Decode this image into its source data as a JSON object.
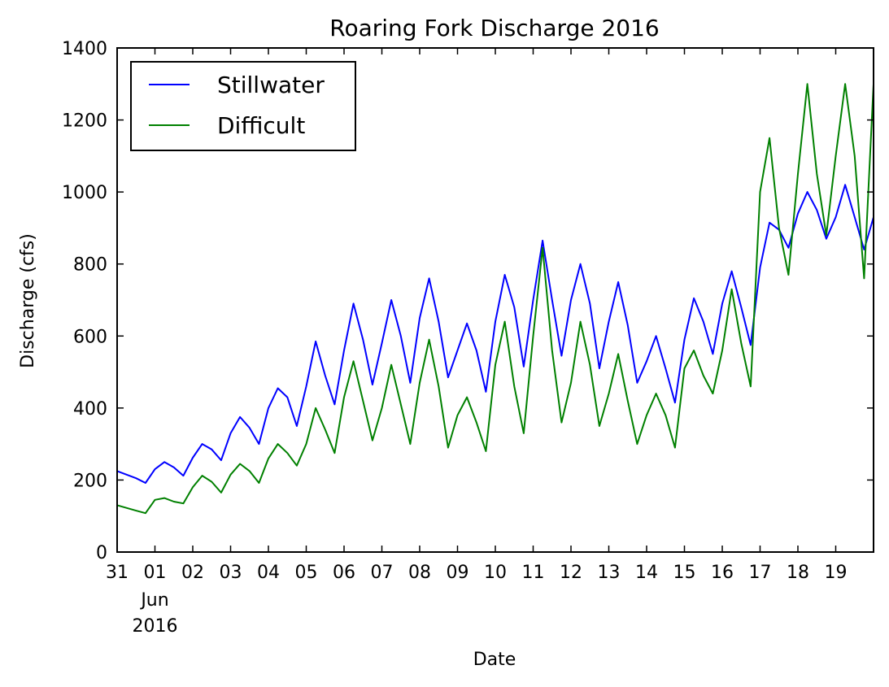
{
  "chart_data": {
    "type": "line",
    "title": "Roaring Fork Discharge 2016",
    "xlabel": "Date",
    "ylabel": "Discharge (cfs)",
    "xlim": [
      "2016-05-31",
      "2016-06-20"
    ],
    "ylim": [
      0,
      1400
    ],
    "yticks": [
      0,
      200,
      400,
      600,
      800,
      1000,
      1200,
      1400
    ],
    "xticks": [
      {
        "date": "2016-05-31",
        "label": "31"
      },
      {
        "date": "2016-06-01",
        "label": "01"
      },
      {
        "date": "2016-06-02",
        "label": "02"
      },
      {
        "date": "2016-06-03",
        "label": "03"
      },
      {
        "date": "2016-06-04",
        "label": "04"
      },
      {
        "date": "2016-06-05",
        "label": "05"
      },
      {
        "date": "2016-06-06",
        "label": "06"
      },
      {
        "date": "2016-06-07",
        "label": "07"
      },
      {
        "date": "2016-06-08",
        "label": "08"
      },
      {
        "date": "2016-06-09",
        "label": "09"
      },
      {
        "date": "2016-06-10",
        "label": "10"
      },
      {
        "date": "2016-06-11",
        "label": "11"
      },
      {
        "date": "2016-06-12",
        "label": "12"
      },
      {
        "date": "2016-06-13",
        "label": "13"
      },
      {
        "date": "2016-06-14",
        "label": "14"
      },
      {
        "date": "2016-06-15",
        "label": "15"
      },
      {
        "date": "2016-06-16",
        "label": "16"
      },
      {
        "date": "2016-06-17",
        "label": "17"
      },
      {
        "date": "2016-06-18",
        "label": "18"
      },
      {
        "date": "2016-06-19",
        "label": "19"
      }
    ],
    "xtick_sublabel": {
      "month": "Jun",
      "year": "2016"
    },
    "legend": "top-left",
    "grid": false,
    "series": [
      {
        "name": "Stillwater",
        "color": "#0000ff",
        "x": [
          "2016-05-31 00:00",
          "2016-05-31 12:00",
          "2016-05-31 18:00",
          "2016-06-01 00:00",
          "2016-06-01 06:00",
          "2016-06-01 12:00",
          "2016-06-01 18:00",
          "2016-06-02 00:00",
          "2016-06-02 06:00",
          "2016-06-02 12:00",
          "2016-06-02 18:00",
          "2016-06-03 00:00",
          "2016-06-03 06:00",
          "2016-06-03 12:00",
          "2016-06-03 18:00",
          "2016-06-04 00:00",
          "2016-06-04 06:00",
          "2016-06-04 12:00",
          "2016-06-04 18:00",
          "2016-06-05 00:00",
          "2016-06-05 06:00",
          "2016-06-05 12:00",
          "2016-06-05 18:00",
          "2016-06-06 00:00",
          "2016-06-06 06:00",
          "2016-06-06 12:00",
          "2016-06-06 18:00",
          "2016-06-07 00:00",
          "2016-06-07 06:00",
          "2016-06-07 12:00",
          "2016-06-07 18:00",
          "2016-06-08 00:00",
          "2016-06-08 06:00",
          "2016-06-08 12:00",
          "2016-06-08 18:00",
          "2016-06-09 00:00",
          "2016-06-09 06:00",
          "2016-06-09 12:00",
          "2016-06-09 18:00",
          "2016-06-10 00:00",
          "2016-06-10 06:00",
          "2016-06-10 12:00",
          "2016-06-10 18:00",
          "2016-06-11 00:00",
          "2016-06-11 06:00",
          "2016-06-11 12:00",
          "2016-06-11 18:00",
          "2016-06-12 00:00",
          "2016-06-12 06:00",
          "2016-06-12 12:00",
          "2016-06-12 18:00",
          "2016-06-13 00:00",
          "2016-06-13 06:00",
          "2016-06-13 12:00",
          "2016-06-13 18:00",
          "2016-06-14 00:00",
          "2016-06-14 06:00",
          "2016-06-14 12:00",
          "2016-06-14 18:00",
          "2016-06-15 00:00",
          "2016-06-15 06:00",
          "2016-06-15 12:00",
          "2016-06-15 18:00",
          "2016-06-16 00:00",
          "2016-06-16 06:00",
          "2016-06-16 12:00",
          "2016-06-16 18:00",
          "2016-06-17 00:00",
          "2016-06-17 06:00",
          "2016-06-17 12:00",
          "2016-06-17 18:00",
          "2016-06-18 00:00",
          "2016-06-18 06:00",
          "2016-06-18 12:00",
          "2016-06-18 18:00",
          "2016-06-19 00:00",
          "2016-06-19 06:00",
          "2016-06-19 12:00",
          "2016-06-19 18:00",
          "2016-06-20 00:00"
        ],
        "y": [
          225,
          205,
          192,
          230,
          250,
          235,
          212,
          262,
          300,
          285,
          255,
          330,
          375,
          345,
          300,
          400,
          455,
          430,
          350,
          460,
          585,
          490,
          410,
          560,
          690,
          590,
          465,
          580,
          700,
          600,
          470,
          650,
          760,
          640,
          485,
          560,
          635,
          560,
          445,
          640,
          770,
          680,
          515,
          700,
          865,
          700,
          545,
          700,
          800,
          690,
          510,
          640,
          750,
          630,
          470,
          530,
          600,
          510,
          415,
          590,
          705,
          640,
          550,
          690,
          780,
          680,
          575,
          790,
          915,
          895,
          845,
          940,
          1000,
          950,
          870,
          930,
          1020,
          930,
          840,
          930
        ]
      },
      {
        "name": "Difficult",
        "color": "#008000",
        "x": [
          "2016-05-31 00:00",
          "2016-05-31 12:00",
          "2016-05-31 18:00",
          "2016-06-01 00:00",
          "2016-06-01 06:00",
          "2016-06-01 12:00",
          "2016-06-01 18:00",
          "2016-06-02 00:00",
          "2016-06-02 06:00",
          "2016-06-02 12:00",
          "2016-06-02 18:00",
          "2016-06-03 00:00",
          "2016-06-03 06:00",
          "2016-06-03 12:00",
          "2016-06-03 18:00",
          "2016-06-04 00:00",
          "2016-06-04 06:00",
          "2016-06-04 12:00",
          "2016-06-04 18:00",
          "2016-06-05 00:00",
          "2016-06-05 06:00",
          "2016-06-05 12:00",
          "2016-06-05 18:00",
          "2016-06-06 00:00",
          "2016-06-06 06:00",
          "2016-06-06 12:00",
          "2016-06-06 18:00",
          "2016-06-07 00:00",
          "2016-06-07 06:00",
          "2016-06-07 12:00",
          "2016-06-07 18:00",
          "2016-06-08 00:00",
          "2016-06-08 06:00",
          "2016-06-08 12:00",
          "2016-06-08 18:00",
          "2016-06-09 00:00",
          "2016-06-09 06:00",
          "2016-06-09 12:00",
          "2016-06-09 18:00",
          "2016-06-10 00:00",
          "2016-06-10 06:00",
          "2016-06-10 12:00",
          "2016-06-10 18:00",
          "2016-06-11 00:00",
          "2016-06-11 06:00",
          "2016-06-11 12:00",
          "2016-06-11 18:00",
          "2016-06-12 00:00",
          "2016-06-12 06:00",
          "2016-06-12 12:00",
          "2016-06-12 18:00",
          "2016-06-13 00:00",
          "2016-06-13 06:00",
          "2016-06-13 12:00",
          "2016-06-13 18:00",
          "2016-06-14 00:00",
          "2016-06-14 06:00",
          "2016-06-14 12:00",
          "2016-06-14 18:00",
          "2016-06-15 00:00",
          "2016-06-15 06:00",
          "2016-06-15 12:00",
          "2016-06-15 18:00",
          "2016-06-16 00:00",
          "2016-06-16 06:00",
          "2016-06-16 12:00",
          "2016-06-16 18:00",
          "2016-06-17 00:00",
          "2016-06-17 06:00",
          "2016-06-17 12:00",
          "2016-06-17 18:00",
          "2016-06-18 00:00",
          "2016-06-18 06:00",
          "2016-06-18 12:00",
          "2016-06-18 18:00",
          "2016-06-19 00:00",
          "2016-06-19 06:00",
          "2016-06-19 12:00",
          "2016-06-19 18:00",
          "2016-06-20 00:00"
        ],
        "y": [
          130,
          115,
          108,
          145,
          150,
          140,
          135,
          180,
          212,
          195,
          165,
          215,
          245,
          225,
          192,
          260,
          300,
          275,
          240,
          300,
          400,
          340,
          275,
          430,
          530,
          420,
          310,
          400,
          520,
          410,
          300,
          470,
          590,
          460,
          290,
          380,
          430,
          360,
          280,
          520,
          640,
          460,
          330,
          600,
          845,
          560,
          360,
          470,
          640,
          520,
          350,
          440,
          550,
          420,
          300,
          380,
          440,
          380,
          290,
          510,
          560,
          490,
          440,
          560,
          730,
          580,
          460,
          1000,
          1150,
          900,
          770,
          1050,
          1300,
          1050,
          880,
          1100,
          1300,
          1100,
          760,
          1300
        ]
      }
    ]
  }
}
